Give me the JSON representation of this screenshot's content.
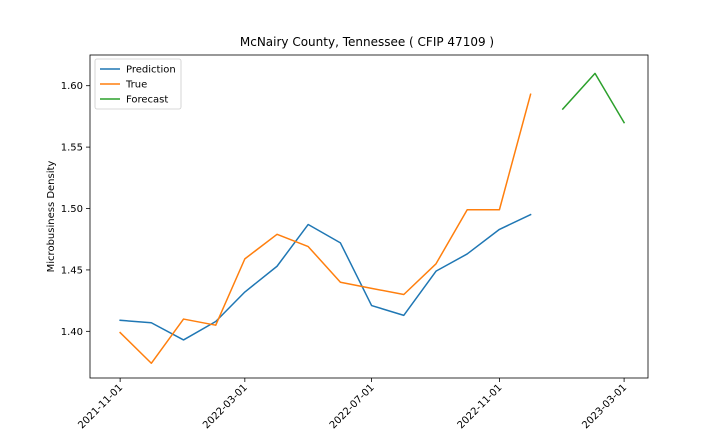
{
  "chart_data": {
    "type": "line",
    "title": "McNairy County, Tennessee ( CFIP 47109 )",
    "xlabel": "",
    "ylabel": "Microbusiness Density",
    "ylim": [
      1.362,
      1.625
    ],
    "yticks": [
      "1.40",
      "1.45",
      "1.50",
      "1.55",
      "1.60"
    ],
    "ytick_values": [
      1.4,
      1.45,
      1.5,
      1.55,
      1.6
    ],
    "xticks": [
      "2021-11-01",
      "2022-03-01",
      "2022-07-01",
      "2022-11-01",
      "2023-03-01"
    ],
    "xlim": [
      "2021-10-03",
      "2023-03-24"
    ],
    "legend_position": "top-left",
    "grid": false,
    "series": [
      {
        "name": "Prediction",
        "color": "#1f77b4",
        "x": [
          "2021-11-01",
          "2021-12-01",
          "2022-01-01",
          "2022-02-01",
          "2022-03-01",
          "2022-04-01",
          "2022-05-01",
          "2022-06-01",
          "2022-07-01",
          "2022-08-01",
          "2022-09-01",
          "2022-10-01",
          "2022-11-01",
          "2022-12-01"
        ],
        "values": [
          1.409,
          1.407,
          1.393,
          1.408,
          1.432,
          1.453,
          1.487,
          1.472,
          1.421,
          1.413,
          1.449,
          1.463,
          1.483,
          1.495
        ]
      },
      {
        "name": "True",
        "color": "#ff7f0e",
        "x": [
          "2021-11-01",
          "2021-12-01",
          "2022-01-01",
          "2022-02-01",
          "2022-03-01",
          "2022-04-01",
          "2022-05-01",
          "2022-06-01",
          "2022-07-01",
          "2022-08-01",
          "2022-09-01",
          "2022-10-01",
          "2022-11-01",
          "2022-12-01"
        ],
        "values": [
          1.399,
          1.374,
          1.41,
          1.405,
          1.459,
          1.479,
          1.469,
          1.44,
          1.435,
          1.43,
          1.455,
          1.499,
          1.499,
          1.593
        ]
      },
      {
        "name": "Forecast",
        "color": "#2ca02c",
        "x": [
          "2023-01-01",
          "2023-02-01",
          "2023-03-01"
        ],
        "values": [
          1.581,
          1.61,
          1.57
        ]
      }
    ]
  }
}
